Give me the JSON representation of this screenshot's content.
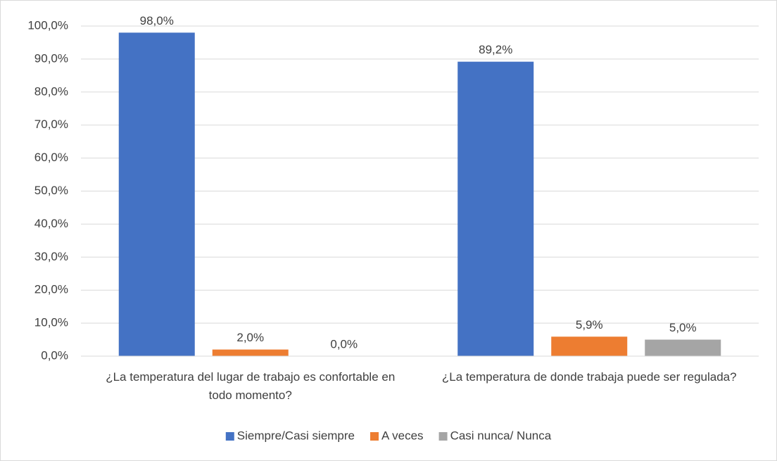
{
  "chart_data": {
    "type": "bar",
    "categories": [
      "¿La temperatura del lugar de trabajo es confortable en todo momento?",
      "¿La temperatura de donde trabaja puede ser regulada?"
    ],
    "series": [
      {
        "name": "Siempre/Casi siempre",
        "color": "#4472c4",
        "values": [
          98.0,
          89.2
        ],
        "value_labels": [
          "98,0%",
          "89,2%"
        ]
      },
      {
        "name": "A veces",
        "color": "#ed7d31",
        "values": [
          2.0,
          5.9
        ],
        "value_labels": [
          "2,0%",
          "5,9%"
        ]
      },
      {
        "name": "Casi nunca/ Nunca",
        "color": "#a5a5a5",
        "values": [
          0.0,
          5.0
        ],
        "value_labels": [
          "0,0%",
          "5,0%"
        ]
      }
    ],
    "ylim": [
      0,
      100
    ],
    "yticks": [
      {
        "value": 0,
        "label": "0,0%"
      },
      {
        "value": 10,
        "label": "10,0%"
      },
      {
        "value": 20,
        "label": "20,0%"
      },
      {
        "value": 30,
        "label": "30,0%"
      },
      {
        "value": 40,
        "label": "40,0%"
      },
      {
        "value": 50,
        "label": "50,0%"
      },
      {
        "value": 60,
        "label": "60,0%"
      },
      {
        "value": 70,
        "label": "70,0%"
      },
      {
        "value": 80,
        "label": "80,0%"
      },
      {
        "value": 90,
        "label": "90,0%"
      },
      {
        "value": 100,
        "label": "100,0%"
      }
    ],
    "grid": true,
    "legend": "bottom"
  }
}
